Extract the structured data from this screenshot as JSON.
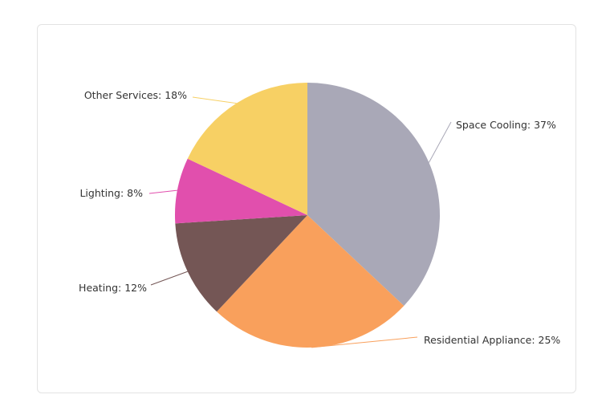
{
  "chart_data": {
    "type": "pie",
    "title": "",
    "categories": [
      "Space Cooling",
      "Residential Appliance",
      "Heating",
      "Lighting",
      "Other Services"
    ],
    "values": [
      37,
      25,
      12,
      8,
      18
    ],
    "labels": [
      "Space Cooling: 37%",
      "Residential Appliance: 25%",
      "Heating: 12%",
      "Lighting: 8%",
      "Other Services: 18%"
    ],
    "colors": [
      "#a9a8b7",
      "#f9a05c",
      "#745655",
      "#e14fad",
      "#f7d064"
    ],
    "legend": "none"
  }
}
